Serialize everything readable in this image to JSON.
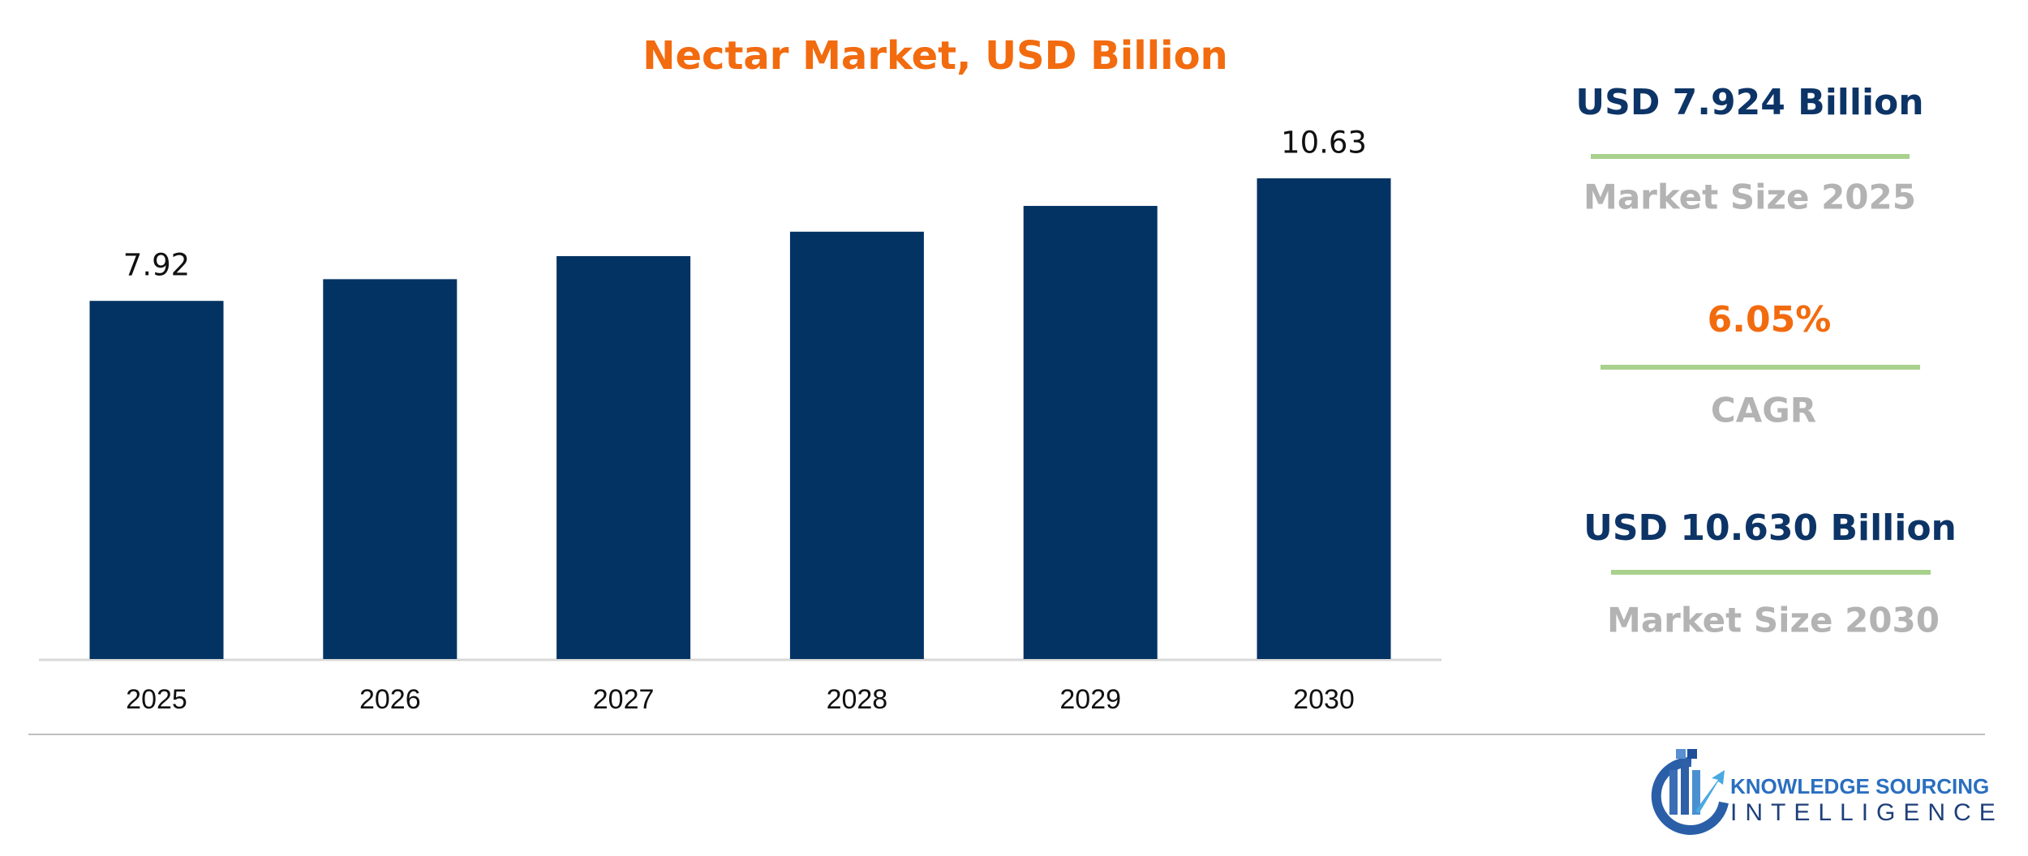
{
  "chart_data": {
    "type": "bar",
    "title": "Nectar Market, USD Billion",
    "categories": [
      "2025",
      "2026",
      "2027",
      "2028",
      "2029",
      "2030"
    ],
    "values": [
      7.92,
      8.4,
      8.91,
      9.45,
      10.02,
      10.63
    ],
    "value_labels": [
      "7.92",
      null,
      null,
      null,
      null,
      "10.63"
    ],
    "color": "#033363"
  },
  "highlights": [
    {
      "value": "USD 7.924 Billion",
      "label": "Market Size 2025"
    },
    {
      "value": "6.05%",
      "label": "CAGR"
    },
    {
      "value": "USD 10.630 Billion",
      "label": "Market Size 2030"
    }
  ],
  "logo": {
    "line1": "KNOWLEDGE SOURCING",
    "line2": "INTELLIGENCE"
  }
}
